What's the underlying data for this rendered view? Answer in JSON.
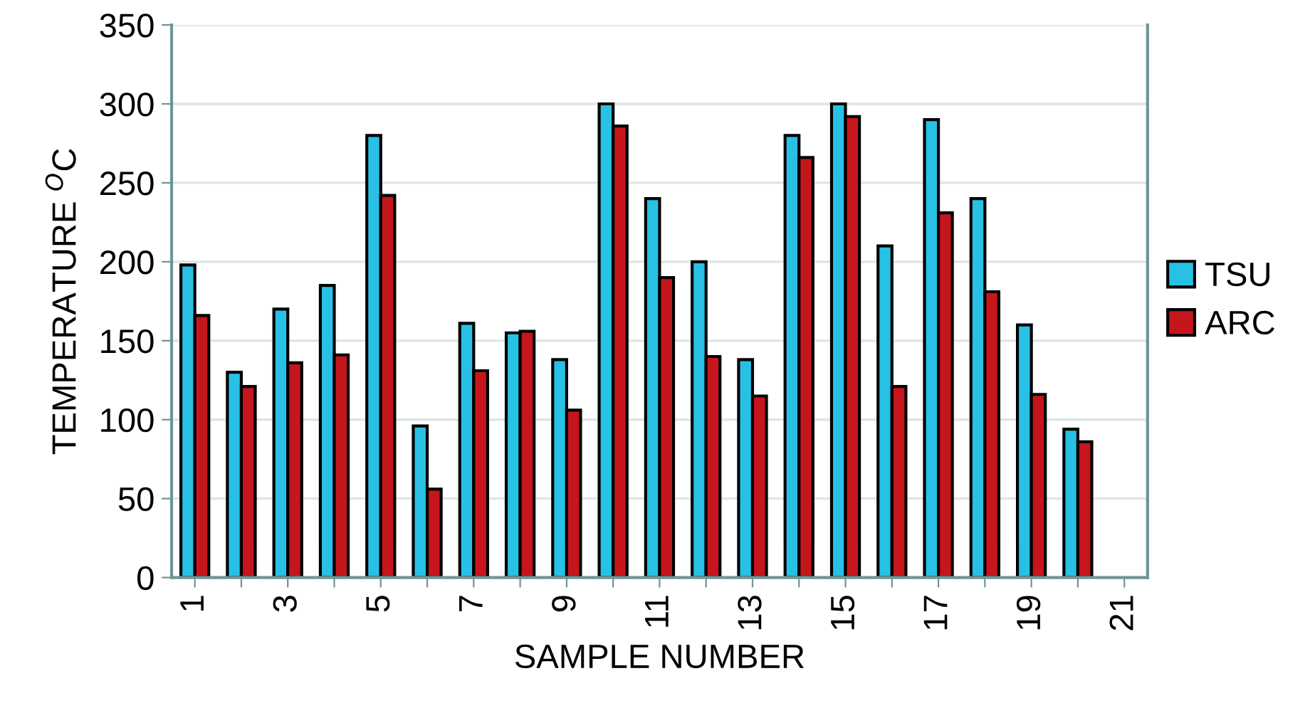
{
  "chart_data": {
    "type": "bar",
    "xlabel": "SAMPLE NUMBER",
    "ylabel": "TEMPERATURE $^{O}$C",
    "categories": [
      "1",
      null,
      "3",
      null,
      "5",
      null,
      "7",
      null,
      "9",
      null,
      "11",
      null,
      "13",
      null,
      "15",
      null,
      "17",
      null,
      "19",
      null,
      "21"
    ],
    "series": [
      {
        "name": "TSU",
        "color": "#29c0e6",
        "values": [
          198,
          130,
          170,
          185,
          280,
          96,
          161,
          155,
          138,
          300,
          240,
          200,
          138,
          280,
          300,
          210,
          290,
          240,
          160,
          94,
          null
        ]
      },
      {
        "name": "ARC",
        "color": "#c4161c",
        "values": [
          166,
          121,
          136,
          141,
          242,
          56,
          131,
          156,
          106,
          286,
          190,
          140,
          115,
          266,
          292,
          121,
          231,
          181,
          116,
          86,
          null
        ]
      }
    ],
    "ylim": [
      0,
      350
    ],
    "yticks": [
      0,
      50,
      100,
      150,
      200,
      250,
      300,
      350
    ],
    "grid": "y",
    "legend": "right"
  }
}
